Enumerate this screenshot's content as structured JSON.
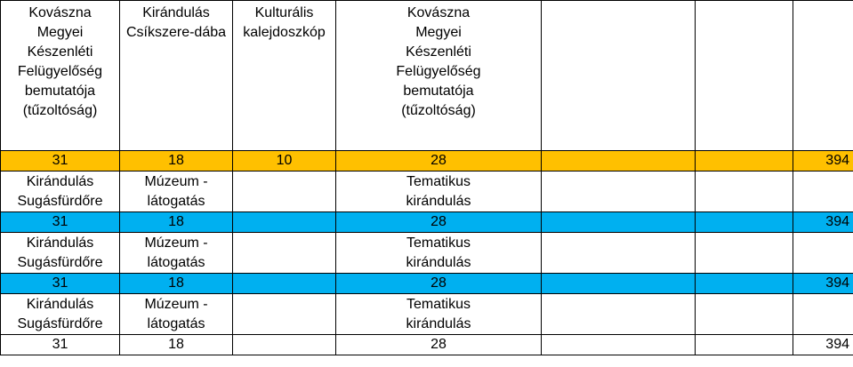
{
  "colors": {
    "yellow_row": "#ffc000",
    "blue_row": "#00b0f0"
  },
  "header": [
    "Kovászna\nMegyei\nKészenléti\nFelügyelőség\nbemutatója\n(tűzoltóság)",
    "Kirándulás\nCsíkszere-dába",
    "Kulturális\nkalejdoszkóp",
    "Kovászna\nMegyei\nKészenléti\nFelügyelőség\nbemutatója\n(tűzoltóság)",
    "",
    "",
    ""
  ],
  "rows": [
    {
      "type": "num",
      "color": "yellow",
      "cells": [
        "31",
        "18",
        "10",
        "28",
        "",
        "",
        "394"
      ]
    },
    {
      "type": "label",
      "cells": [
        "Kirándulás\nSugásfürdőre",
        "Múzeum -\nlátogatás",
        "",
        "Tematikus\nkirándulás",
        "",
        "",
        ""
      ]
    },
    {
      "type": "num",
      "color": "blue",
      "cells": [
        "31",
        "18",
        "",
        "28",
        "",
        "",
        "394"
      ]
    },
    {
      "type": "label",
      "cells": [
        "Kirándulás\nSugásfürdőre",
        "Múzeum -\nlátogatás",
        "",
        "Tematikus\nkirándulás",
        "",
        "",
        ""
      ]
    },
    {
      "type": "num",
      "color": "blue",
      "cells": [
        "31",
        "18",
        "",
        "28",
        "",
        "",
        "394"
      ]
    },
    {
      "type": "label",
      "cells": [
        "Kirándulás\nSugásfürdőre",
        "Múzeum -\nlátogatás",
        "",
        "Tematikus\nkirándulás",
        "",
        "",
        ""
      ]
    },
    {
      "type": "num",
      "color": "none",
      "cells": [
        "31",
        "18",
        "",
        "28",
        "",
        "",
        "394"
      ]
    }
  ]
}
